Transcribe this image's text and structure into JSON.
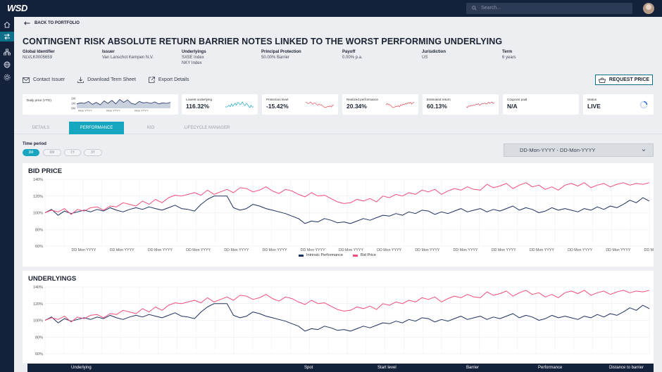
{
  "topbar": {
    "logo": "WSD",
    "search_placeholder": "Search..."
  },
  "nav": {
    "back_label": "BACK TO PORTFOLIO"
  },
  "page_title": "CONTINGENT RISK ABSOLUTE RETURN BARRIER NOTES LINKED TO THE WORST PERFORMING UNDERLYING",
  "meta": [
    {
      "label": "Global Identifier",
      "value": "NLVLK0005659",
      "value2": ""
    },
    {
      "label": "Issuer",
      "value": "Van Lanschot Kempen N.V.",
      "value2": ""
    },
    {
      "label": "Underlyings",
      "value": "SX5E Index",
      "value2": "NKY Index"
    },
    {
      "label": "Principal Protection",
      "value": "50.00% Barrier",
      "value2": ""
    },
    {
      "label": "Payoff",
      "value": "0.00% p.a.",
      "value2": ""
    },
    {
      "label": "Jurisdiction",
      "value": "US",
      "value2": ""
    },
    {
      "label": "Term",
      "value": "6 years",
      "value2": ""
    }
  ],
  "actions": {
    "contact": "Contact Issuer",
    "download": "Download Term Sheet",
    "export": "Export Details",
    "request_price": "REQUEST PRICE"
  },
  "daily_price": {
    "label": "Daily price (YTD)",
    "y_ticks": [
      "2M",
      "1M",
      "0M"
    ],
    "x_ticks": [
      "Mon YYYY",
      "Mon YYYY",
      "Mon YYYY"
    ],
    "values": [
      0.45,
      0.55,
      0.5,
      0.7,
      0.4,
      0.6,
      0.35,
      0.75,
      0.5,
      0.8,
      0.45,
      0.9,
      0.6,
      0.85,
      0.5,
      0.4,
      0.7,
      0.55,
      0.6,
      0.5,
      0.65,
      0.45,
      0.55,
      0.5,
      0.6
    ]
  },
  "kpis": [
    {
      "label": "Lowest underlying",
      "value": "116.32%",
      "color": "#17a6bf"
    },
    {
      "label": "Protection level",
      "value": "-15.42%",
      "color": "#e04b5a"
    },
    {
      "label": "Realized performance",
      "value": "20.34%",
      "color": "#e04b5a"
    },
    {
      "label": "Estimated return",
      "value": "60.13%",
      "color": "#e04b5a"
    },
    {
      "label": "Coupons paid",
      "value": "N/A",
      "color": ""
    },
    {
      "label": "Status",
      "value": "LIVE",
      "color": "#2a6fd6"
    }
  ],
  "tabs": [
    "DETAILS",
    "PERFORMANCE",
    "KIO",
    "LIFECYCLE MANAGER"
  ],
  "time_period": {
    "label": "Time period",
    "options": [
      "3M",
      "6M",
      "1Y",
      "3Y"
    ],
    "selected": "3M",
    "date_range": "DD-Mon-YYYY - DD-Mon-YYYY"
  },
  "colors": {
    "navy": "#14213b",
    "teal": "#17a6bf",
    "pink": "#ef4f7a",
    "series_navy": "#1f3160"
  },
  "chart_data": [
    {
      "type": "line",
      "title": "BID PRICE",
      "y_ticks": [
        "140%",
        "120%",
        "100%",
        "80%",
        "60%"
      ],
      "ylim": [
        60,
        140
      ],
      "x_ticks": [
        "DD Mon YYYY",
        "DD Mon YYYY",
        "DD Mon YYYY",
        "DD Mon YYYY",
        "DD Mon YYYY",
        "DD Mon YYYY",
        "DD Mon YYYY",
        "DD Mon YYYY",
        "DD Mon YYYY",
        "DD Mon YYYY",
        "DD Mon YYYY",
        "DD Mon YYYY",
        "DD Mon YYYY",
        "DD Mon YYYY",
        "DD Mon YYYY",
        "DD Mon YYYY"
      ],
      "legend": [
        "Intrinsic Performance",
        "Bid Price"
      ],
      "series": [
        {
          "name": "Intrinsic Performance",
          "color": "#1f3160",
          "values": [
            100,
            104,
            97,
            102,
            99,
            101,
            103,
            101,
            104,
            102,
            106,
            103,
            101,
            104,
            106,
            104,
            107,
            105,
            103,
            106,
            109,
            105,
            104,
            102,
            110,
            116,
            120,
            120,
            120,
            106,
            103,
            105,
            110,
            108,
            105,
            103,
            101,
            99,
            96,
            93,
            87,
            90,
            89,
            93,
            91,
            88,
            89,
            87,
            90,
            93,
            91,
            94,
            97,
            96,
            99,
            97,
            101,
            99,
            103,
            102,
            98,
            101,
            99,
            102,
            105,
            101,
            103,
            105,
            101,
            104,
            102,
            105,
            108,
            103,
            106,
            104,
            100,
            102,
            106,
            103,
            105,
            103,
            101,
            105,
            103,
            107,
            104,
            108,
            106,
            110,
            115,
            112,
            118,
            114
          ]
        },
        {
          "name": "Bid Price",
          "color": "#ef4f7a",
          "values": [
            100,
            103,
            101,
            105,
            98,
            104,
            102,
            106,
            107,
            103,
            108,
            107,
            112,
            110,
            108,
            114,
            110,
            116,
            112,
            118,
            121,
            120,
            122,
            124,
            121,
            127,
            122,
            125,
            128,
            124,
            130,
            129,
            125,
            127,
            131,
            126,
            123,
            128,
            126,
            122,
            119,
            124,
            120,
            121,
            117,
            113,
            111,
            112,
            116,
            114,
            117,
            113,
            120,
            118,
            122,
            120,
            124,
            122,
            127,
            125,
            128,
            122,
            126,
            129,
            127,
            131,
            128,
            127,
            134,
            130,
            132,
            135,
            129,
            133,
            136,
            131,
            133,
            128,
            131,
            127,
            133,
            135,
            132,
            136,
            130,
            133,
            135,
            131,
            134,
            136,
            133,
            135,
            134,
            136
          ]
        }
      ]
    },
    {
      "type": "line",
      "title": "UNDERLYINGS",
      "y_ticks": [
        "140%",
        "120%",
        "100%",
        "80%",
        "60%"
      ],
      "ylim": [
        60,
        140
      ],
      "series": [
        {
          "name": "Intrinsic Performance",
          "color": "#1f3160",
          "values": [
            100,
            104,
            97,
            102,
            99,
            101,
            103,
            101,
            104,
            102,
            106,
            103,
            101,
            104,
            106,
            104,
            107,
            105,
            103,
            106,
            109,
            105,
            104,
            102,
            110,
            116,
            120,
            120,
            120,
            106,
            103,
            105,
            110,
            108,
            105,
            103,
            101,
            99,
            96,
            93,
            87,
            90,
            89,
            93,
            91,
            88,
            89,
            87,
            90,
            93,
            91,
            94,
            97,
            96,
            99,
            97,
            101,
            99,
            103,
            102,
            98,
            101,
            99,
            102,
            105,
            101,
            103,
            105,
            101,
            104,
            102,
            105,
            108,
            103,
            106,
            104,
            100,
            102,
            106,
            103,
            105,
            103,
            101,
            105,
            103,
            107,
            104,
            108,
            106,
            110,
            115,
            112,
            118,
            114
          ]
        },
        {
          "name": "Bid Price",
          "color": "#ef4f7a",
          "values": [
            100,
            103,
            101,
            105,
            98,
            104,
            102,
            106,
            107,
            103,
            108,
            107,
            112,
            110,
            108,
            114,
            110,
            116,
            112,
            118,
            121,
            120,
            122,
            124,
            121,
            127,
            122,
            125,
            128,
            124,
            130,
            129,
            125,
            127,
            131,
            126,
            123,
            128,
            126,
            122,
            119,
            124,
            120,
            121,
            117,
            113,
            111,
            112,
            116,
            114,
            117,
            113,
            120,
            118,
            122,
            120,
            124,
            122,
            127,
            125,
            128,
            122,
            126,
            129,
            127,
            131,
            128,
            127,
            134,
            130,
            132,
            135,
            129,
            133,
            136,
            131,
            133,
            128,
            131,
            127,
            133,
            135,
            132,
            136,
            130,
            133,
            135,
            131,
            134,
            136,
            133,
            135,
            134,
            136
          ]
        }
      ]
    }
  ],
  "underlyings_table": {
    "headers": [
      "Underlying",
      "Spot",
      "Start level",
      "Barrier",
      "Performance",
      "Distance to barrier"
    ]
  }
}
